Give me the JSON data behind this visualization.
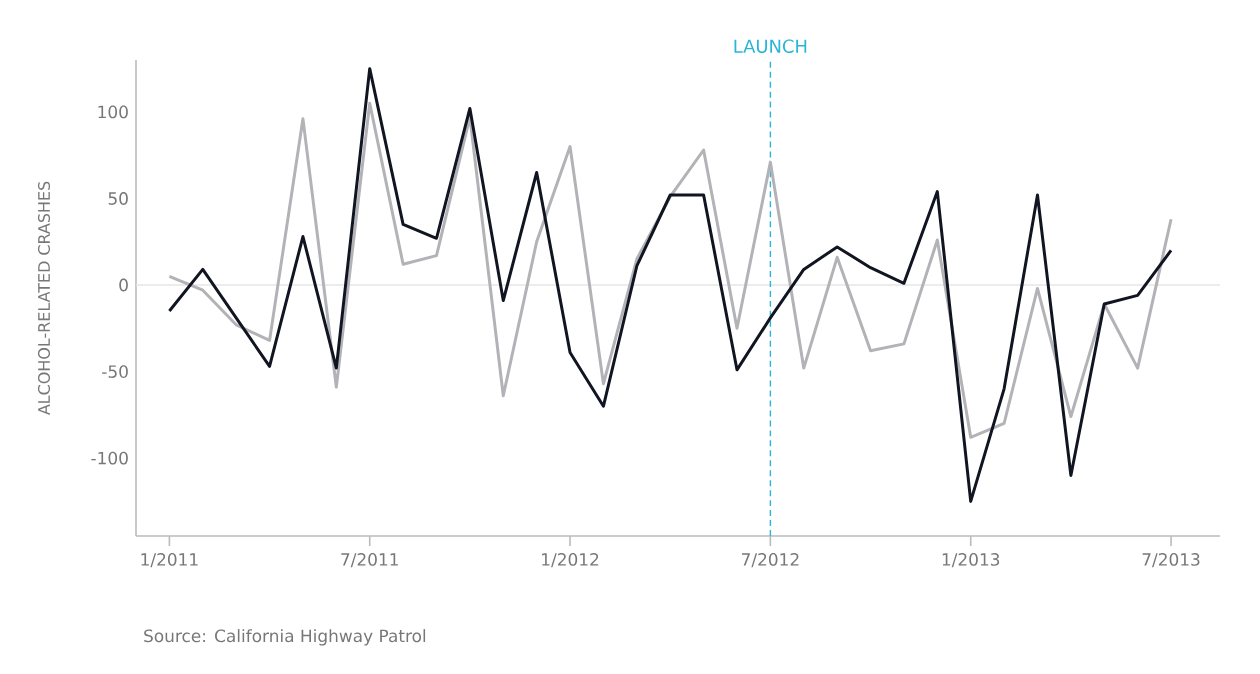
{
  "chart_data": {
    "type": "line",
    "ylabel": "ALCOHOL-RELATED CRASHES",
    "x": [
      "2011-01",
      "2011-02",
      "2011-03",
      "2011-04",
      "2011-05",
      "2011-06",
      "2011-07",
      "2011-08",
      "2011-09",
      "2011-10",
      "2011-11",
      "2011-12",
      "2012-01",
      "2012-02",
      "2012-03",
      "2012-04",
      "2012-05",
      "2012-06",
      "2012-07",
      "2012-08",
      "2012-09",
      "2012-10",
      "2012-11",
      "2012-12",
      "2013-01",
      "2013-02",
      "2013-03",
      "2013-04",
      "2013-05",
      "2013-06",
      "2013-07"
    ],
    "series": [
      {
        "color": "#b3b3b7",
        "values": [
          5,
          -3,
          -23,
          -32,
          96,
          -59,
          105,
          12,
          17,
          97,
          -64,
          25,
          80,
          -57,
          15,
          51,
          78,
          -25,
          71,
          -48,
          16,
          -38,
          -34,
          26,
          -88,
          -80,
          -2,
          -76,
          -11,
          -48,
          38
        ]
      },
      {
        "color": "#111522",
        "values": [
          -15,
          9,
          -19,
          -47,
          28,
          -48,
          125,
          35,
          27,
          102,
          -9,
          65,
          -39,
          -70,
          11,
          52,
          52,
          -49,
          -19,
          9,
          22,
          10,
          1,
          54,
          -125,
          -60,
          52,
          -110,
          -11,
          -6,
          20
        ]
      }
    ],
    "xlim": [
      "2010-12",
      "2013-08-15"
    ],
    "ylim": [
      -145,
      130
    ],
    "xticks": [
      {
        "value": "2011-01",
        "label": "1/2011"
      },
      {
        "value": "2011-07",
        "label": "7/2011"
      },
      {
        "value": "2012-01",
        "label": "1/2012"
      },
      {
        "value": "2012-07",
        "label": "7/2012"
      },
      {
        "value": "2013-01",
        "label": "1/2013"
      },
      {
        "value": "2013-07",
        "label": "7/2013"
      }
    ],
    "yticks": [
      -100,
      -50,
      0,
      50,
      100
    ],
    "ref_lines": [
      {
        "axis": "y",
        "value": 0,
        "color": "#e6e6e6",
        "line_style": "solid"
      },
      {
        "axis": "x",
        "value": "2012-07",
        "label": "LAUNCH",
        "color": "#29b6d6",
        "line_style": "dashed"
      }
    ],
    "annotations": [
      "Source: California Highway Patrol"
    ],
    "grid": false,
    "marker": "none",
    "line_style": "solid"
  }
}
